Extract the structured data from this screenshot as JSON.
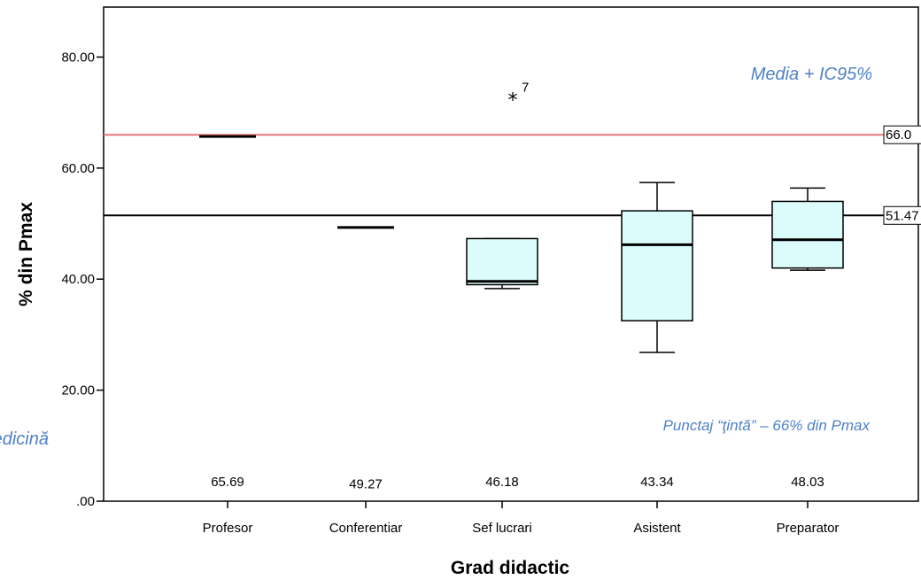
{
  "chart_data": {
    "type": "box",
    "xlabel": "Grad didactic",
    "ylabel": "% din Pmax",
    "ylim": [
      0,
      89
    ],
    "yticks": [
      0,
      20,
      40,
      60,
      80
    ],
    "ytick_labels": [
      ".00",
      "20.00",
      "40.00",
      "60.00",
      "80.00"
    ],
    "categories": [
      "Profesor",
      "Conferentiar",
      "Sef lucrari",
      "Asistent",
      "Preparator"
    ],
    "boxes": [
      {
        "whisker_low": 65.7,
        "q1": 65.7,
        "median": 65.7,
        "q3": 65.7,
        "whisker_high": 65.7
      },
      {
        "whisker_low": 49.3,
        "q1": 49.3,
        "median": 49.3,
        "q3": 49.3,
        "whisker_high": 49.3
      },
      {
        "whisker_low": 38.3,
        "q1": 39.0,
        "median": 39.6,
        "q3": 47.3,
        "whisker_high": 47.3
      },
      {
        "whisker_low": 26.8,
        "q1": 32.5,
        "median": 46.2,
        "q3": 52.3,
        "whisker_high": 57.4
      },
      {
        "whisker_low": 41.6,
        "q1": 42.0,
        "median": 47.1,
        "q3": 54.0,
        "whisker_high": 56.4
      }
    ],
    "outliers": [
      {
        "category": "Sef lucrari",
        "value": 72.5,
        "label": "7",
        "marker": "*"
      }
    ],
    "means": [
      "65.69",
      "49.27",
      "46.18",
      "43.34",
      "48.03"
    ],
    "mean_y": [
      2.7,
      2.3,
      2.7,
      2.7,
      2.7
    ],
    "reference_lines": [
      {
        "value": 66.0,
        "label": "66.0",
        "color": "#e8747a"
      },
      {
        "value": 51.47,
        "label": "51.47",
        "color": "#000000"
      }
    ],
    "annotations": {
      "media": "Media + IC95%",
      "punctaj": "Punctaj “ţintă” – 66% din Pmax",
      "medicina": "Medicină"
    },
    "box_fill": "#dcfbfb",
    "note_color": "#4f81c8"
  }
}
